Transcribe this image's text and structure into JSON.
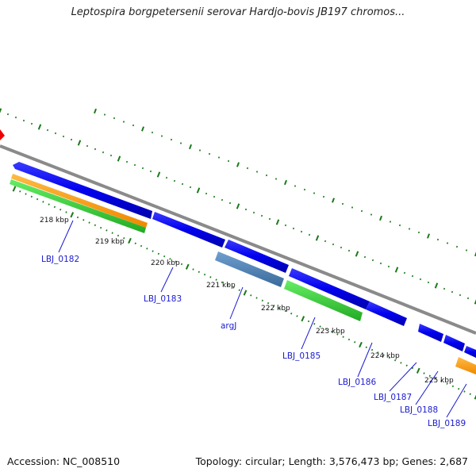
{
  "title": "Leptospira borgpetersenii serovar Hardjo-bovis JB197 chromos...",
  "footer": {
    "accession": "Accession: NC_008510",
    "topology": "Topology: circular; Length: 3,576,473 bp; Genes: 2,687"
  },
  "ruler_labels": [
    "218 kbp",
    "219 kbp",
    "220 kbp",
    "221 kbp",
    "222 kbp",
    "223 kbp",
    "224 kbp",
    "225 kbp"
  ],
  "gene_labels": [
    "LBJ_0182",
    "LBJ_0183",
    "argJ",
    "LBJ_0185",
    "LBJ_0186",
    "LBJ_0187",
    "LBJ_0188",
    "LBJ_0189"
  ],
  "colors": {
    "backbone": "#8a8a8a",
    "forward_gene": "#0000ee",
    "gene_steelblue": "#4a7fb5",
    "green_feature": "#33cc33",
    "orange_feature": "#ff9900",
    "tick": "#1a7a1a",
    "label": "#1a1ad0",
    "marker": "#ee0000"
  }
}
